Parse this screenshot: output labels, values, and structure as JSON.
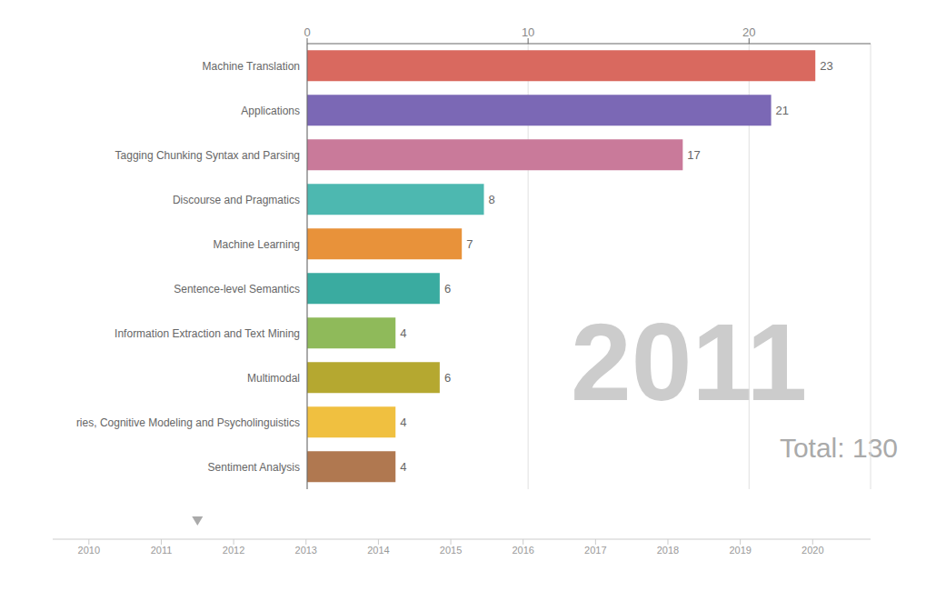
{
  "chart_data": {
    "type": "bar",
    "orientation": "horizontal",
    "categories": [
      "Machine Translation",
      "Applications",
      "Tagging Chunking Syntax and Parsing",
      "Discourse and Pragmatics",
      "Machine Learning",
      "Sentence-level Semantics",
      "Information Extraction and Text Mining",
      "Multimodal",
      "ries, Cognitive Modeling and Psycholinguistics",
      "Sentiment Analysis"
    ],
    "values": [
      23,
      21,
      17,
      8,
      7,
      6,
      4,
      6,
      4,
      4
    ],
    "colors": [
      "#d9695f",
      "#7b68b5",
      "#c97a9a",
      "#4db8b0",
      "#e8923a",
      "#3aaba0",
      "#8fba5a",
      "#b5a830",
      "#f0c040",
      "#b07850"
    ],
    "xlim": [
      0,
      25.5
    ],
    "xticks": [
      0,
      10,
      20
    ],
    "grid": true,
    "data_labels": true,
    "annotations": [
      "2011",
      "Total: 130"
    ],
    "timeline": {
      "years": [
        2010,
        2011,
        2012,
        2013,
        2014,
        2015,
        2016,
        2017,
        2018,
        2019,
        2020
      ],
      "marker": 2011.5,
      "xlim": [
        2009.5,
        2020.8
      ]
    }
  }
}
